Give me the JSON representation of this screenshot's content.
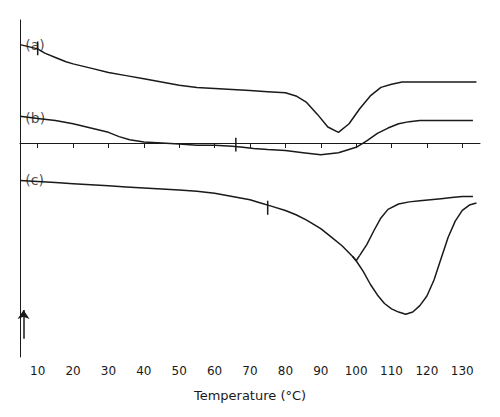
{
  "chart_data": {
    "type": "line",
    "title": "",
    "xlabel": "Temperature (°C)",
    "xlim": [
      5,
      135
    ],
    "xticks": [
      10,
      20,
      30,
      40,
      50,
      60,
      70,
      80,
      90,
      100,
      110,
      120,
      130
    ],
    "ylim": [
      -2.0,
      1.15
    ],
    "tick_labels": "x",
    "grid": false,
    "color": "#1a1a1a",
    "series": [
      {
        "x": [
          5,
          10,
          12,
          15,
          18,
          20,
          25,
          30,
          35,
          40,
          45,
          50,
          55,
          60,
          65,
          70,
          75,
          80,
          83,
          86,
          89,
          92,
          95,
          98,
          101,
          104,
          107,
          110,
          113,
          116,
          119,
          122,
          125,
          128,
          131,
          134
        ],
        "values": [
          0.92,
          0.88,
          0.84,
          0.8,
          0.76,
          0.74,
          0.7,
          0.66,
          0.63,
          0.6,
          0.57,
          0.54,
          0.52,
          0.51,
          0.5,
          0.49,
          0.48,
          0.47,
          0.44,
          0.38,
          0.27,
          0.15,
          0.1,
          0.18,
          0.32,
          0.44,
          0.52,
          0.55,
          0.57,
          0.57,
          0.57,
          0.57,
          0.57,
          0.57,
          0.57,
          0.57
        ]
      },
      {
        "x": [
          5,
          10,
          15,
          20,
          25,
          30,
          33,
          36,
          40,
          45,
          50,
          55,
          60,
          65,
          68,
          71,
          75,
          80,
          85,
          90,
          95,
          100,
          103,
          106,
          109,
          112,
          115,
          118,
          121,
          124,
          127,
          130,
          133
        ],
        "values": [
          0.25,
          0.23,
          0.21,
          0.18,
          0.14,
          0.1,
          0.06,
          0.03,
          0.01,
          0.0,
          -0.01,
          -0.02,
          -0.02,
          -0.03,
          -0.04,
          -0.05,
          -0.06,
          -0.07,
          -0.09,
          -0.11,
          -0.09,
          -0.04,
          0.02,
          0.09,
          0.14,
          0.18,
          0.2,
          0.21,
          0.21,
          0.21,
          0.21,
          0.21,
          0.21
        ]
      },
      {
        "x": [
          5,
          10,
          15,
          20,
          25,
          30,
          35,
          40,
          45,
          50,
          55,
          60,
          65,
          70,
          73,
          76,
          80,
          83,
          86,
          90,
          93,
          96,
          99,
          100,
          101
        ],
        "values": [
          -0.35,
          -0.36,
          -0.37,
          -0.38,
          -0.39,
          -0.4,
          -0.41,
          -0.42,
          -0.43,
          -0.44,
          -0.45,
          -0.47,
          -0.5,
          -0.53,
          -0.56,
          -0.59,
          -0.63,
          -0.67,
          -0.72,
          -0.8,
          -0.88,
          -0.96,
          -1.06,
          -1.1,
          -1.05
        ]
      },
      {
        "x": [
          101,
          103,
          105,
          107,
          109,
          112,
          115,
          118,
          121,
          124,
          127,
          130,
          133
        ],
        "values": [
          -1.05,
          -0.95,
          -0.82,
          -0.7,
          -0.62,
          -0.57,
          -0.55,
          -0.54,
          -0.53,
          -0.52,
          -0.51,
          -0.5,
          -0.5
        ]
      },
      {
        "x": [
          99,
          100,
          102,
          104,
          106,
          108,
          110,
          112,
          114,
          116,
          118,
          120,
          122,
          124,
          126,
          128,
          130,
          132,
          134
        ],
        "values": [
          -1.06,
          -1.1,
          -1.2,
          -1.32,
          -1.42,
          -1.5,
          -1.55,
          -1.58,
          -1.6,
          -1.58,
          -1.52,
          -1.43,
          -1.28,
          -1.08,
          -0.88,
          -0.73,
          -0.63,
          -0.58,
          -0.56
        ]
      },
      {
        "x": [
          10,
          10
        ],
        "values": [
          0.82,
          0.95
        ]
      },
      {
        "x": [
          66,
          66
        ],
        "values": [
          -0.08,
          0.05
        ]
      },
      {
        "x": [
          75,
          75
        ],
        "values": [
          -0.67,
          -0.54
        ]
      }
    ],
    "arrows": [
      {
        "x": 6.0,
        "y_start": -1.83,
        "y_end": -1.56
      }
    ],
    "annotations": [
      {
        "text": "(a)",
        "x": 6.5,
        "y": 0.98
      },
      {
        "text": "(b)",
        "x": 6.5,
        "y": 0.3
      },
      {
        "text": "(c)",
        "x": 6.5,
        "y": -0.28
      }
    ]
  }
}
